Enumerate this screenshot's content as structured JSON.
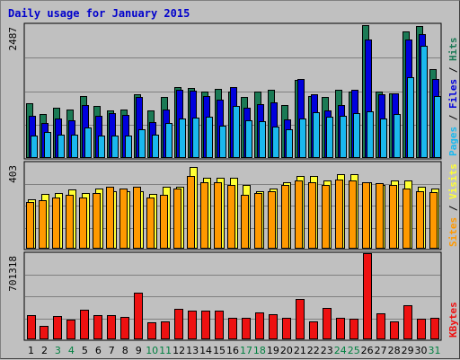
{
  "chart_data": {
    "type": "bar",
    "title": "Daily usage for January 2015",
    "colors": {
      "hits": "#1b7a55",
      "files": "#0000dd",
      "pages": "#1ab8ee",
      "visits": "#ffff33",
      "sites": "#ff9900",
      "kbytes": "#ee1111",
      "weekend_label": "#008040",
      "title": "#0000cc"
    },
    "x": [
      "1",
      "2",
      "3",
      "4",
      "5",
      "6",
      "7",
      "8",
      "9",
      "10",
      "11",
      "12",
      "13",
      "14",
      "15",
      "16",
      "17",
      "18",
      "19",
      "20",
      "21",
      "22",
      "23",
      "24",
      "25",
      "26",
      "27",
      "28",
      "29",
      "30",
      "31"
    ],
    "weekend_days": [
      "3",
      "4",
      "10",
      "11",
      "17",
      "18",
      "24",
      "25",
      "31"
    ],
    "panels": [
      {
        "name": "hits-files-pages",
        "max_label": "2487",
        "ylim": [
          0,
          2487
        ],
        "legend": [
          {
            "text": "Hits",
            "color_key": "hits"
          },
          {
            "text": "Files",
            "color_key": "files"
          },
          {
            "text": "Pages",
            "color_key": "pages"
          }
        ],
        "series": [
          {
            "name": "Hits",
            "color_key": "hits",
            "values": [
              1010,
              820,
              940,
              900,
              1160,
              970,
              880,
              900,
              1180,
              880,
              1140,
              1320,
              1310,
              1230,
              1290,
              1230,
              1130,
              1230,
              1270,
              990,
              1460,
              1160,
              1130,
              1270,
              1240,
              2470,
              1230,
              1210,
              2360,
              2460,
              1660
            ]
          },
          {
            "name": "Files",
            "color_key": "files",
            "values": [
              780,
              650,
              740,
              700,
              990,
              780,
              840,
              800,
              1140,
              670,
              900,
              1270,
              1260,
              1150,
              1080,
              1320,
              940,
              1000,
              1030,
              720,
              1470,
              1180,
              880,
              990,
              1270,
              2200,
              1190,
              1210,
              2210,
              2300,
              1470
            ]
          },
          {
            "name": "Pages",
            "color_key": "pages",
            "values": [
              420,
              490,
              440,
              430,
              560,
              410,
              420,
              410,
              530,
              440,
              650,
              740,
              750,
              760,
              600,
              970,
              700,
              690,
              590,
              530,
              730,
              850,
              760,
              780,
              830,
              870,
              740,
              820,
              1500,
              2080,
              1160
            ]
          }
        ]
      },
      {
        "name": "visits-sites",
        "max_label": "403",
        "ylim": [
          0,
          403
        ],
        "legend": [
          {
            "text": "Visits",
            "color_key": "visits"
          },
          {
            "text": "Sites",
            "color_key": "sites"
          }
        ],
        "series": [
          {
            "name": "Visits",
            "color_key": "visits",
            "values": [
              230,
              255,
              260,
              275,
              260,
              280,
              270,
              270,
              270,
              255,
              290,
              290,
              380,
              330,
              330,
              330,
              300,
              270,
              280,
              310,
              340,
              340,
              320,
              350,
              350,
              310,
              300,
              320,
              320,
              290,
              280
            ]
          },
          {
            "name": "Sites",
            "color_key": "sites",
            "values": [
              220,
              225,
              240,
              250,
              240,
              260,
              290,
              280,
              290,
              240,
              250,
              280,
              340,
              310,
              310,
              300,
              250,
              260,
              270,
              300,
              320,
              310,
              300,
              325,
              320,
              310,
              305,
              300,
              280,
              270,
              265
            ]
          }
        ]
      },
      {
        "name": "kbytes",
        "max_label": "701318",
        "ylim": [
          0,
          701318
        ],
        "legend": [
          {
            "text": "KBytes",
            "color_key": "kbytes"
          }
        ],
        "series": [
          {
            "name": "KBytes",
            "color_key": "kbytes",
            "values": [
              195000,
              109000,
              190000,
              163000,
              239000,
              195000,
              196000,
              183000,
              382000,
              142000,
              149000,
              248000,
              235000,
              234000,
              231000,
              176000,
              176000,
              217000,
              204000,
              175000,
              327000,
              145000,
              253000,
              178000,
              171000,
              701318,
              211000,
              145000,
              278000,
              166000,
              173000
            ]
          }
        ]
      }
    ]
  }
}
